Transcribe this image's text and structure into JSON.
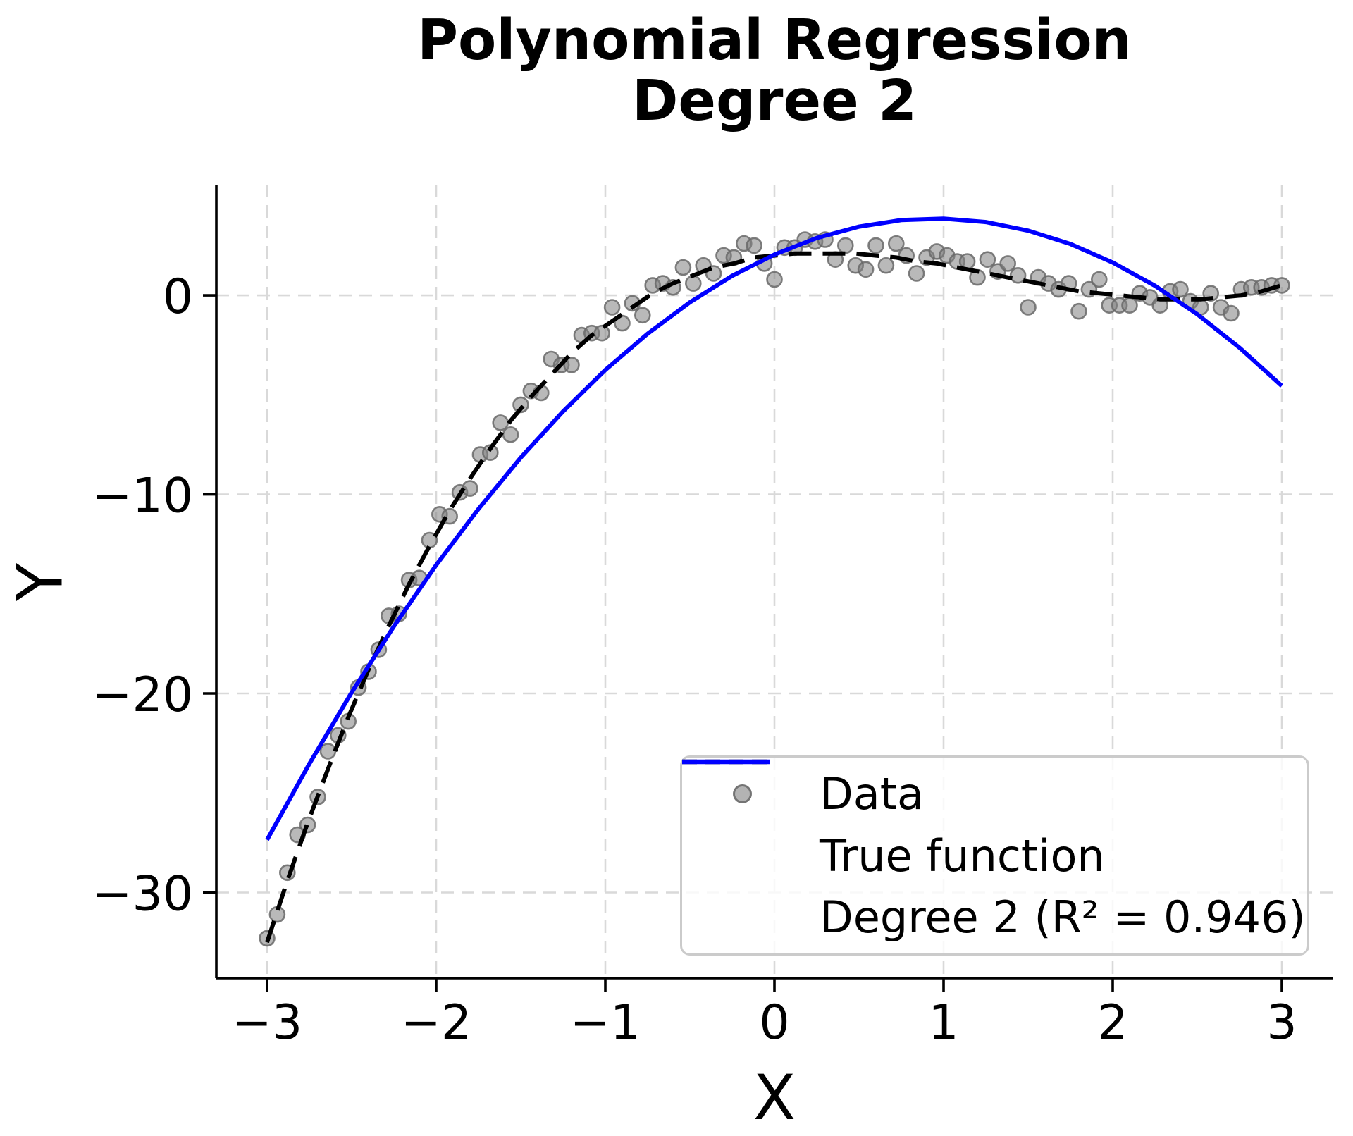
{
  "title": {
    "line1": "Polynomial Regression",
    "line2": "Degree 2"
  },
  "colors": {
    "fit_line": "#0000ff",
    "true_function_line": "#000000",
    "scatter": "#808080",
    "grid": "#d9d9d9",
    "background": "#ffffff"
  },
  "chart_data": {
    "type": "scatter",
    "title": "Polynomial Regression\nDegree 2",
    "xlabel": "X",
    "ylabel": "Y",
    "xlim": [
      -3.3,
      3.3
    ],
    "ylim": [
      -34.3,
      5.56
    ],
    "grid": true,
    "legend_position": "lower right",
    "x_ticks": [
      {
        "value": -3,
        "label": "−3"
      },
      {
        "value": -2,
        "label": "−2"
      },
      {
        "value": -1,
        "label": "−1"
      },
      {
        "value": 0,
        "label": "0"
      },
      {
        "value": 1,
        "label": "1"
      },
      {
        "value": 2,
        "label": "2"
      },
      {
        "value": 3,
        "label": "3"
      }
    ],
    "y_ticks": [
      {
        "value": 0,
        "label": "0"
      },
      {
        "value": -10,
        "label": "−10"
      },
      {
        "value": -20,
        "label": "−20"
      },
      {
        "value": -30,
        "label": "−30"
      }
    ],
    "scatter": {
      "name": "Data",
      "color": "#808080",
      "points": [
        [
          -3.0,
          -32.3
        ],
        [
          -2.94,
          -31.1
        ],
        [
          -2.88,
          -29.0
        ],
        [
          -2.82,
          -27.1
        ],
        [
          -2.76,
          -26.6
        ],
        [
          -2.7,
          -25.2
        ],
        [
          -2.64,
          -22.9
        ],
        [
          -2.58,
          -22.1
        ],
        [
          -2.52,
          -21.4
        ],
        [
          -2.46,
          -19.7
        ],
        [
          -2.4,
          -18.9
        ],
        [
          -2.34,
          -17.8
        ],
        [
          -2.28,
          -16.1
        ],
        [
          -2.22,
          -16.0
        ],
        [
          -2.16,
          -14.3
        ],
        [
          -2.1,
          -14.2
        ],
        [
          -2.04,
          -12.3
        ],
        [
          -1.98,
          -11.0
        ],
        [
          -1.92,
          -11.1
        ],
        [
          -1.86,
          -9.9
        ],
        [
          -1.8,
          -9.7
        ],
        [
          -1.74,
          -8.0
        ],
        [
          -1.68,
          -7.9
        ],
        [
          -1.62,
          -6.4
        ],
        [
          -1.56,
          -7.0
        ],
        [
          -1.5,
          -5.5
        ],
        [
          -1.44,
          -4.8
        ],
        [
          -1.38,
          -4.9
        ],
        [
          -1.32,
          -3.2
        ],
        [
          -1.26,
          -3.5
        ],
        [
          -1.2,
          -3.5
        ],
        [
          -1.14,
          -2.0
        ],
        [
          -1.08,
          -1.9
        ],
        [
          -1.02,
          -1.9
        ],
        [
          -0.96,
          -0.6
        ],
        [
          -0.9,
          -1.4
        ],
        [
          -0.84,
          -0.4
        ],
        [
          -0.78,
          -1.0
        ],
        [
          -0.72,
          0.5
        ],
        [
          -0.66,
          0.6
        ],
        [
          -0.6,
          0.4
        ],
        [
          -0.54,
          1.4
        ],
        [
          -0.48,
          0.6
        ],
        [
          -0.42,
          1.5
        ],
        [
          -0.36,
          1.1
        ],
        [
          -0.3,
          2.0
        ],
        [
          -0.24,
          1.9
        ],
        [
          -0.18,
          2.6
        ],
        [
          -0.12,
          2.5
        ],
        [
          -0.06,
          1.6
        ],
        [
          0.0,
          0.8
        ],
        [
          0.06,
          2.4
        ],
        [
          0.12,
          2.4
        ],
        [
          0.18,
          2.8
        ],
        [
          0.24,
          2.7
        ],
        [
          0.3,
          2.8
        ],
        [
          0.36,
          1.8
        ],
        [
          0.42,
          2.5
        ],
        [
          0.48,
          1.5
        ],
        [
          0.54,
          1.3
        ],
        [
          0.6,
          2.5
        ],
        [
          0.66,
          1.5
        ],
        [
          0.72,
          2.6
        ],
        [
          0.78,
          2.0
        ],
        [
          0.84,
          1.1
        ],
        [
          0.9,
          1.9
        ],
        [
          0.96,
          2.2
        ],
        [
          1.02,
          2.0
        ],
        [
          1.08,
          1.7
        ],
        [
          1.14,
          1.7
        ],
        [
          1.2,
          0.9
        ],
        [
          1.26,
          1.8
        ],
        [
          1.32,
          1.2
        ],
        [
          1.38,
          1.6
        ],
        [
          1.44,
          1.0
        ],
        [
          1.5,
          -0.6
        ],
        [
          1.56,
          0.9
        ],
        [
          1.62,
          0.6
        ],
        [
          1.68,
          0.3
        ],
        [
          1.74,
          0.6
        ],
        [
          1.8,
          -0.8
        ],
        [
          1.86,
          0.3
        ],
        [
          1.92,
          0.8
        ],
        [
          1.98,
          -0.5
        ],
        [
          2.04,
          -0.5
        ],
        [
          2.1,
          -0.5
        ],
        [
          2.16,
          0.1
        ],
        [
          2.22,
          -0.1
        ],
        [
          2.28,
          -0.5
        ],
        [
          2.34,
          0.2
        ],
        [
          2.4,
          0.3
        ],
        [
          2.46,
          -0.3
        ],
        [
          2.52,
          -0.6
        ],
        [
          2.58,
          0.1
        ],
        [
          2.64,
          -0.6
        ],
        [
          2.7,
          -0.9
        ],
        [
          2.76,
          0.3
        ],
        [
          2.82,
          0.4
        ],
        [
          2.88,
          0.4
        ],
        [
          2.94,
          0.5
        ],
        [
          3.0,
          0.5
        ]
      ]
    },
    "series": [
      {
        "id": "true-function-line",
        "name": "True function",
        "style": "dashed",
        "color": "#000000",
        "points": [
          [
            -3.0,
            -32.5
          ],
          [
            -2.88,
            -29.4
          ],
          [
            -2.76,
            -26.5
          ],
          [
            -2.64,
            -23.8
          ],
          [
            -2.52,
            -21.2
          ],
          [
            -2.4,
            -18.8
          ],
          [
            -2.28,
            -16.6
          ],
          [
            -2.16,
            -14.5
          ],
          [
            -2.04,
            -12.6
          ],
          [
            -1.92,
            -10.8
          ],
          [
            -1.8,
            -9.2
          ],
          [
            -1.68,
            -7.7
          ],
          [
            -1.56,
            -6.3
          ],
          [
            -1.44,
            -5.1
          ],
          [
            -1.32,
            -4.0
          ],
          [
            -1.2,
            -2.9
          ],
          [
            -1.08,
            -2.0
          ],
          [
            -0.96,
            -1.3
          ],
          [
            -0.84,
            -0.6
          ],
          [
            -0.72,
            0.1
          ],
          [
            -0.6,
            0.6
          ],
          [
            -0.48,
            1.0
          ],
          [
            -0.36,
            1.4
          ],
          [
            -0.24,
            1.6
          ],
          [
            -0.12,
            1.9
          ],
          [
            0.0,
            2.0
          ],
          [
            0.12,
            2.1
          ],
          [
            0.24,
            2.1
          ],
          [
            0.36,
            2.1
          ],
          [
            0.48,
            2.1
          ],
          [
            0.6,
            2.0
          ],
          [
            0.72,
            1.9
          ],
          [
            0.84,
            1.7
          ],
          [
            0.96,
            1.6
          ],
          [
            1.08,
            1.4
          ],
          [
            1.2,
            1.2
          ],
          [
            1.32,
            1.0
          ],
          [
            1.44,
            0.8
          ],
          [
            1.56,
            0.6
          ],
          [
            1.68,
            0.4
          ],
          [
            1.8,
            0.2
          ],
          [
            1.92,
            0.1
          ],
          [
            2.04,
            0.0
          ],
          [
            2.16,
            -0.1
          ],
          [
            2.28,
            -0.2
          ],
          [
            2.4,
            -0.2
          ],
          [
            2.52,
            -0.2
          ],
          [
            2.64,
            -0.1
          ],
          [
            2.76,
            0.0
          ],
          [
            2.88,
            0.2
          ],
          [
            3.0,
            0.5
          ]
        ]
      },
      {
        "id": "degree2-fit-line",
        "name": "Degree 2 (R² = 0.946)",
        "degree": 2,
        "r_squared": 0.946,
        "style": "solid",
        "color": "#0000ff",
        "points": [
          [
            -3.0,
            -27.35
          ],
          [
            -2.75,
            -23.53
          ],
          [
            -2.5,
            -19.95
          ],
          [
            -2.25,
            -16.63
          ],
          [
            -2.0,
            -13.55
          ],
          [
            -1.75,
            -10.73
          ],
          [
            -1.5,
            -8.15
          ],
          [
            -1.25,
            -5.83
          ],
          [
            -1.0,
            -3.75
          ],
          [
            -0.75,
            -1.93
          ],
          [
            -0.5,
            -0.35
          ],
          [
            -0.25,
            0.98
          ],
          [
            0.0,
            2.05
          ],
          [
            0.25,
            2.88
          ],
          [
            0.5,
            3.45
          ],
          [
            0.75,
            3.78
          ],
          [
            1.0,
            3.85
          ],
          [
            1.25,
            3.68
          ],
          [
            1.5,
            3.25
          ],
          [
            1.75,
            2.58
          ],
          [
            2.0,
            1.65
          ],
          [
            2.25,
            0.48
          ],
          [
            2.5,
            -0.95
          ],
          [
            2.75,
            -2.63
          ],
          [
            3.0,
            -4.55
          ]
        ]
      }
    ]
  }
}
